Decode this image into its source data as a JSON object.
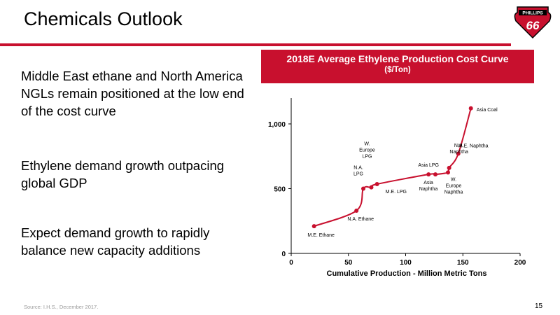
{
  "slide": {
    "title": "Chemicals Outlook",
    "logo_text": "PHILLIPS",
    "logo_number": "66",
    "bullets": [
      "Middle East ethane and North America NGLs remain positioned at the low end of the cost curve",
      "Ethylene demand growth outpacing global GDP",
      "Expect demand growth to rapidly balance new capacity additions"
    ],
    "source": "Source: I.H.S., December 2017.",
    "page_number": "15"
  },
  "colors": {
    "accent": "#c8102e",
    "axis": "#000000"
  },
  "chart_data": {
    "type": "line",
    "title": "2018E Average Ethylene Production Cost Curve",
    "subtitle": "($/Ton)",
    "xlabel": "Cumulative Production - Million Metric Tons",
    "ylabel": "",
    "xlim": [
      0,
      200
    ],
    "ylim": [
      0,
      1200
    ],
    "xticks": [
      "0",
      "50",
      "100",
      "150",
      "200"
    ],
    "yticks": [
      "0",
      "500",
      "1,000"
    ],
    "grid": false,
    "legend": "none",
    "series": [
      {
        "values": [
          {
            "x": 20,
            "y": 210
          },
          {
            "x": 57,
            "y": 330
          },
          {
            "x": 63,
            "y": 500
          },
          {
            "x": 70,
            "y": 510
          },
          {
            "x": 75,
            "y": 535
          },
          {
            "x": 120,
            "y": 610
          },
          {
            "x": 126,
            "y": 610
          },
          {
            "x": 137,
            "y": 625
          },
          {
            "x": 138,
            "y": 660
          },
          {
            "x": 146,
            "y": 770
          },
          {
            "x": 157,
            "y": 1120
          }
        ]
      }
    ],
    "annotations": [
      {
        "text": [
          "M.E. Ethane"
        ]
      },
      {
        "text": [
          "N.A. Ethane"
        ]
      },
      {
        "text": [
          "N.A.",
          "LPG"
        ]
      },
      {
        "text": [
          "W.",
          "Europe",
          "LPG"
        ]
      },
      {
        "text": [
          "M.E. LPG"
        ]
      },
      {
        "text": [
          "Asia LPG"
        ]
      },
      {
        "text": [
          "Asia",
          "Naphtha"
        ]
      },
      {
        "text": [
          "W.",
          "Europe",
          "Naphtha"
        ]
      },
      {
        "text": [
          "N.A.",
          "Naphtha"
        ]
      },
      {
        "text": [
          "M.E. Naphtha"
        ]
      },
      {
        "text": [
          "Asia Coal"
        ]
      }
    ]
  }
}
